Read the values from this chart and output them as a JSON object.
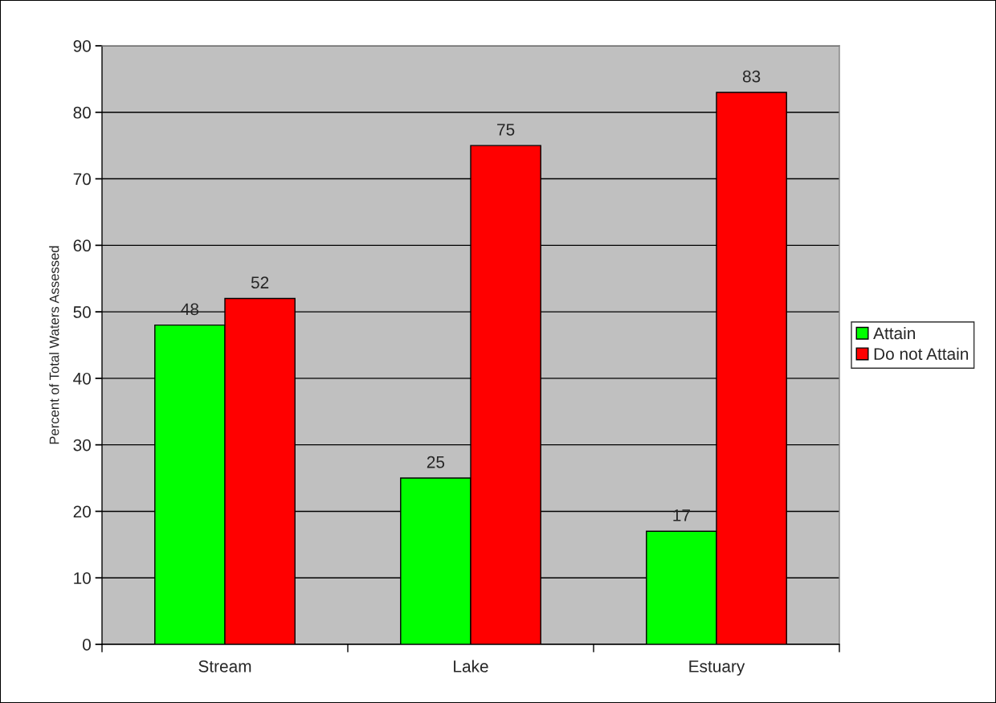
{
  "chart_data": {
    "type": "bar",
    "ylabel": "Percent of Total Waters Assessed",
    "categories": [
      "Stream",
      "Lake",
      "Estuary"
    ],
    "series": [
      {
        "name": "Attain",
        "color": "#00ff00",
        "values": [
          48,
          25,
          17
        ]
      },
      {
        "name": "Do not Attain",
        "color": "#ff0000",
        "values": [
          52,
          75,
          83
        ]
      }
    ],
    "ylim": [
      0,
      90
    ],
    "yticks": [
      0,
      10,
      20,
      30,
      40,
      50,
      60,
      70,
      80,
      90
    ],
    "grid": "y",
    "legend": "right",
    "data_labels": true
  }
}
